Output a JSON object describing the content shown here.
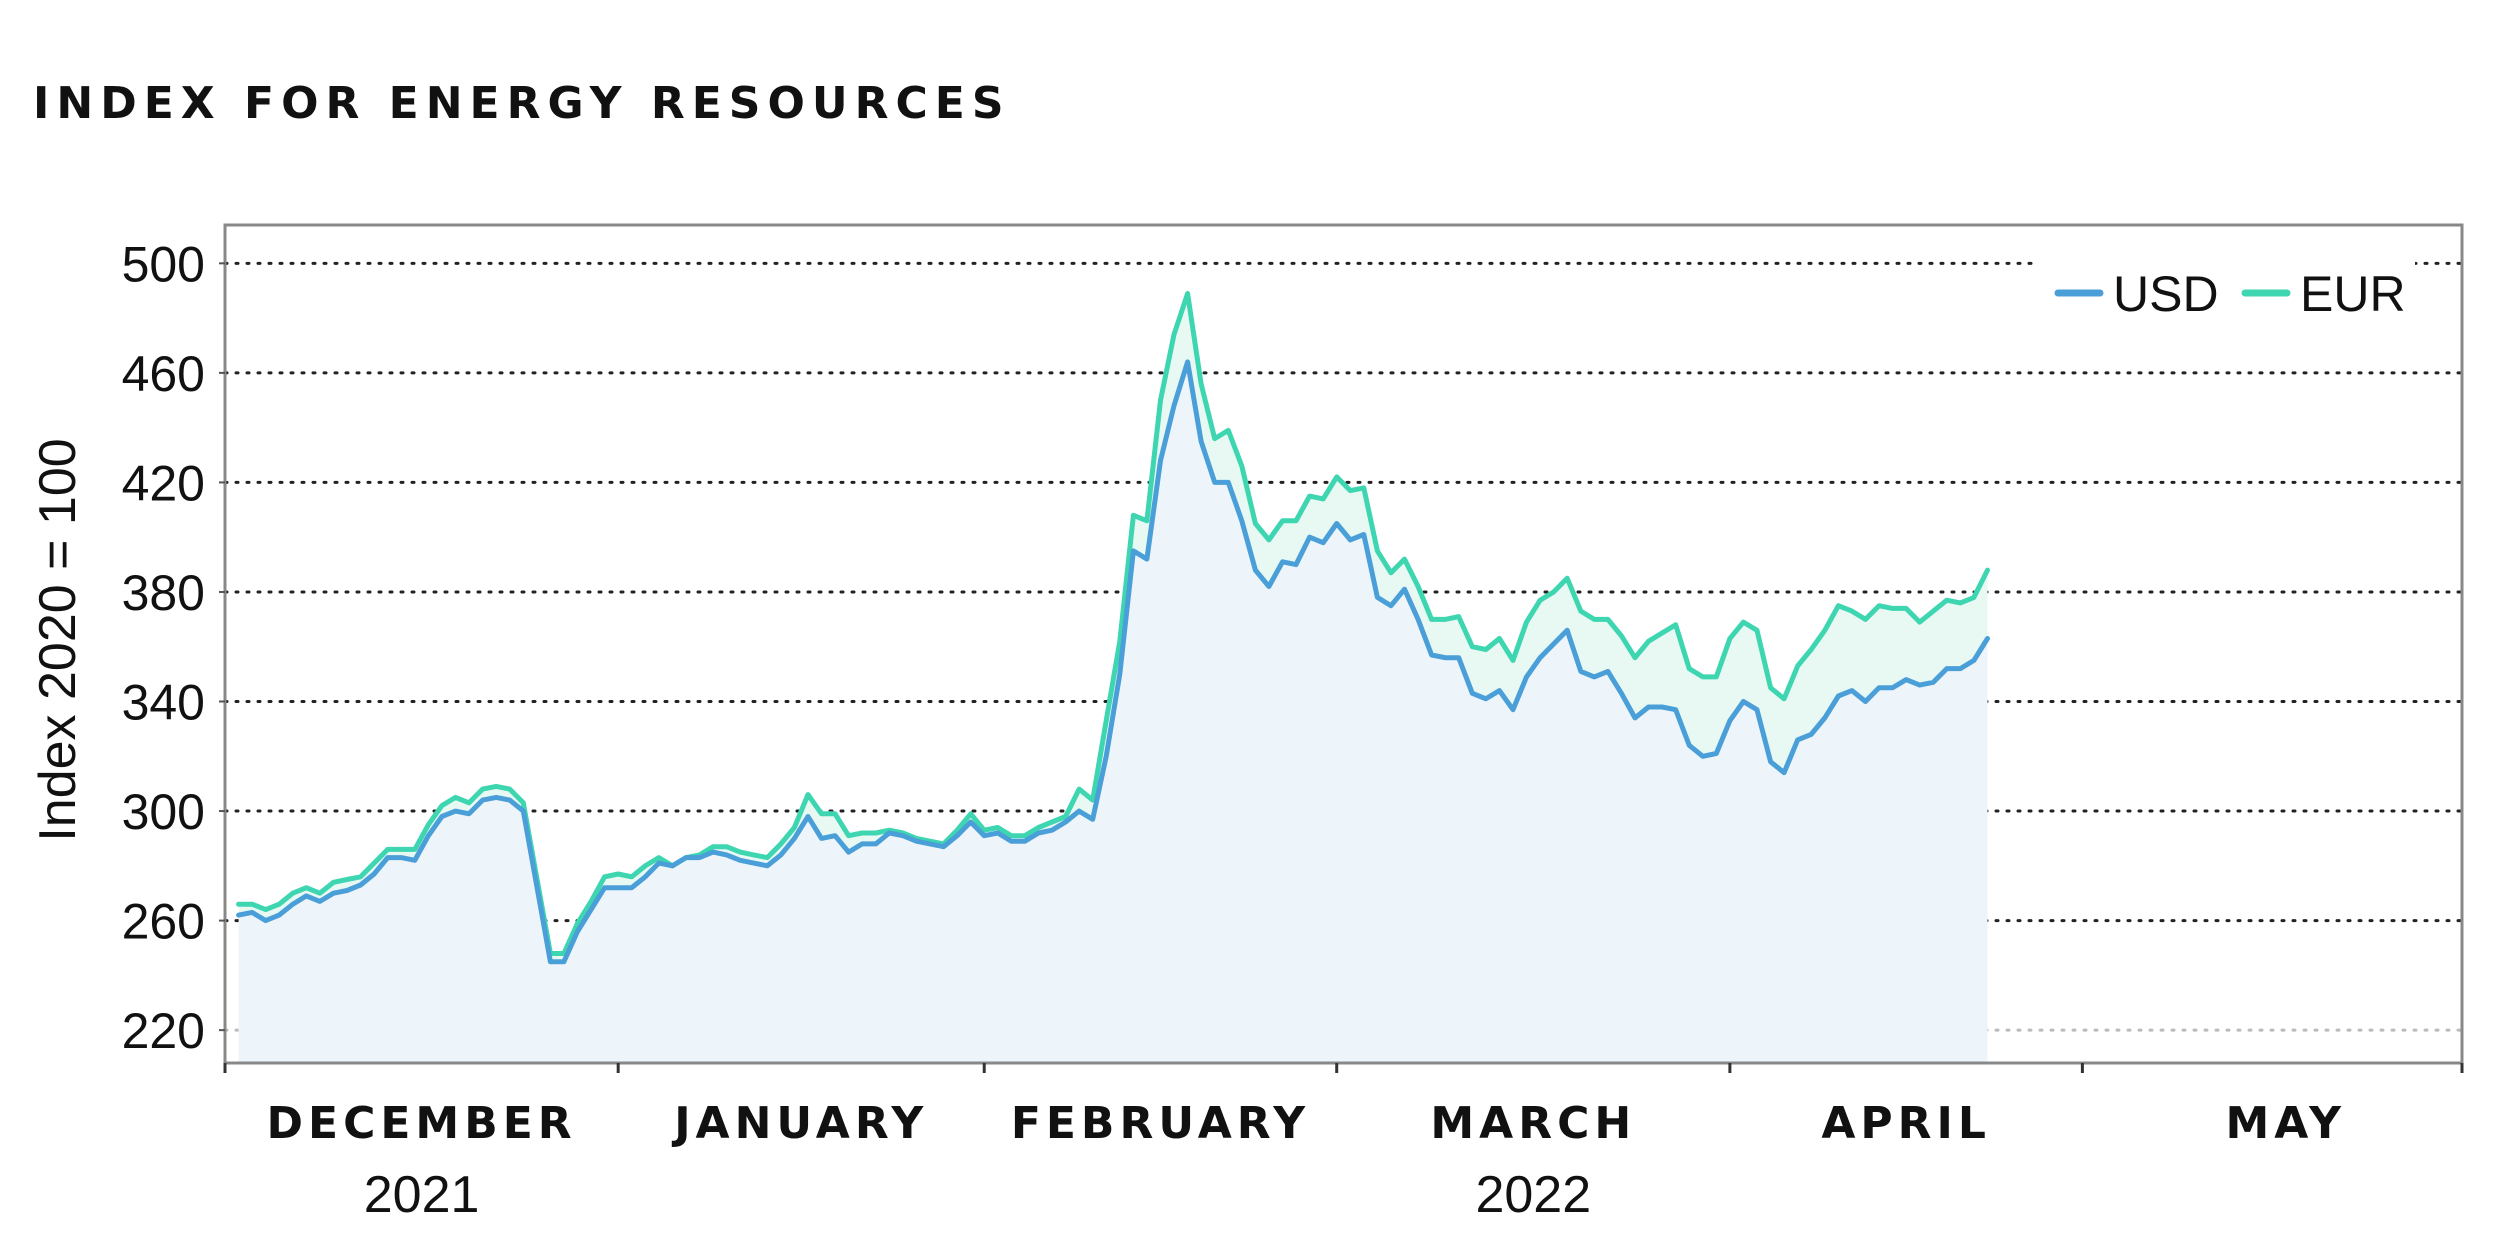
{
  "chart_data": {
    "type": "line",
    "title": "INDEX FOR ENERGY RESOURCES",
    "ylabel": "Index 2020 = 100",
    "ylim": [
      208,
      514
    ],
    "yticks": [
      220,
      260,
      300,
      340,
      380,
      420,
      460,
      500
    ],
    "grid": "horizontal-dotted",
    "legend_position": "top-right",
    "fill_under": "USD",
    "x_range": [
      0,
      165
    ],
    "month_ticks": [
      0,
      29,
      56,
      82,
      111,
      137,
      165
    ],
    "months": [
      {
        "label": "DECEMBER",
        "center": 14.5
      },
      {
        "label": "JANUARY",
        "center": 42.5
      },
      {
        "label": "FEBRUARY",
        "center": 69
      },
      {
        "label": "MARCH",
        "center": 96.5
      },
      {
        "label": "APRIL",
        "center": 124
      },
      {
        "label": "MAY",
        "center": 152
      }
    ],
    "years": [
      {
        "label": "2021",
        "center": 14.5
      },
      {
        "label": "2022",
        "center": 96.5
      }
    ],
    "colors": {
      "USD": "#4a9fd8",
      "EUR": "#3dd6b0",
      "fill": "#eef5fa",
      "grid": "#222222",
      "frame": "#888888"
    },
    "series": [
      {
        "name": "USD",
        "points": [
          [
            1,
            262
          ],
          [
            2,
            263
          ],
          [
            3,
            260
          ],
          [
            4,
            262
          ],
          [
            5,
            266
          ],
          [
            6,
            269
          ],
          [
            7,
            267
          ],
          [
            8,
            270
          ],
          [
            9,
            271
          ],
          [
            10,
            273
          ],
          [
            11,
            277
          ],
          [
            12,
            283
          ],
          [
            13,
            283
          ],
          [
            14,
            282
          ],
          [
            15,
            291
          ],
          [
            16,
            298
          ],
          [
            17,
            300
          ],
          [
            18,
            299
          ],
          [
            19,
            304
          ],
          [
            20,
            305
          ],
          [
            21,
            304
          ],
          [
            22,
            300
          ],
          [
            24,
            245
          ],
          [
            25,
            245
          ],
          [
            26,
            256
          ],
          [
            27,
            264
          ],
          [
            28,
            272
          ],
          [
            29,
            272
          ],
          [
            30,
            272
          ],
          [
            31,
            276
          ],
          [
            32,
            281
          ],
          [
            33,
            280
          ],
          [
            34,
            283
          ],
          [
            35,
            283
          ],
          [
            36,
            285
          ],
          [
            37,
            284
          ],
          [
            38,
            282
          ],
          [
            39,
            281
          ],
          [
            40,
            280
          ],
          [
            41,
            284
          ],
          [
            42,
            290
          ],
          [
            43,
            298
          ],
          [
            44,
            290
          ],
          [
            45,
            291
          ],
          [
            46,
            285
          ],
          [
            47,
            288
          ],
          [
            48,
            288
          ],
          [
            49,
            292
          ],
          [
            50,
            291
          ],
          [
            51,
            289
          ],
          [
            52,
            288
          ],
          [
            53,
            287
          ],
          [
            54,
            291
          ],
          [
            55,
            296
          ],
          [
            56,
            291
          ],
          [
            57,
            292
          ],
          [
            58,
            289
          ],
          [
            59,
            289
          ],
          [
            60,
            292
          ],
          [
            61,
            293
          ],
          [
            62,
            296
          ],
          [
            63,
            300
          ],
          [
            64,
            297
          ],
          [
            65,
            320
          ],
          [
            66,
            350
          ],
          [
            67,
            395
          ],
          [
            68,
            392
          ],
          [
            69,
            428
          ],
          [
            70,
            448
          ],
          [
            71,
            464
          ],
          [
            72,
            435
          ],
          [
            73,
            420
          ],
          [
            74,
            420
          ],
          [
            75,
            406
          ],
          [
            76,
            388
          ],
          [
            77,
            382
          ],
          [
            78,
            391
          ],
          [
            79,
            390
          ],
          [
            80,
            400
          ],
          [
            81,
            398
          ],
          [
            82,
            405
          ],
          [
            83,
            399
          ],
          [
            84,
            401
          ],
          [
            85,
            378
          ],
          [
            86,
            375
          ],
          [
            87,
            381
          ],
          [
            88,
            370
          ],
          [
            89,
            357
          ],
          [
            90,
            356
          ],
          [
            91,
            356
          ],
          [
            92,
            343
          ],
          [
            93,
            341
          ],
          [
            94,
            344
          ],
          [
            95,
            337
          ],
          [
            96,
            349
          ],
          [
            97,
            356
          ],
          [
            98,
            361
          ],
          [
            99,
            366
          ],
          [
            100,
            351
          ],
          [
            101,
            349
          ],
          [
            102,
            351
          ],
          [
            103,
            343
          ],
          [
            104,
            334
          ],
          [
            105,
            338
          ],
          [
            106,
            338
          ],
          [
            107,
            337
          ],
          [
            108,
            324
          ],
          [
            109,
            320
          ],
          [
            110,
            321
          ],
          [
            111,
            333
          ],
          [
            112,
            340
          ],
          [
            113,
            337
          ],
          [
            114,
            318
          ],
          [
            115,
            314
          ],
          [
            116,
            326
          ],
          [
            117,
            328
          ],
          [
            118,
            334
          ],
          [
            119,
            342
          ],
          [
            120,
            344
          ],
          [
            121,
            340
          ],
          [
            122,
            345
          ],
          [
            123,
            345
          ],
          [
            124,
            348
          ],
          [
            125,
            346
          ],
          [
            126,
            347
          ],
          [
            127,
            352
          ],
          [
            128,
            352
          ],
          [
            129,
            355
          ],
          [
            130,
            363
          ]
        ]
      },
      {
        "name": "EUR",
        "points": [
          [
            1,
            266
          ],
          [
            2,
            266
          ],
          [
            3,
            264
          ],
          [
            4,
            266
          ],
          [
            5,
            270
          ],
          [
            6,
            272
          ],
          [
            7,
            270
          ],
          [
            8,
            274
          ],
          [
            9,
            275
          ],
          [
            10,
            276
          ],
          [
            11,
            281
          ],
          [
            12,
            286
          ],
          [
            13,
            286
          ],
          [
            14,
            286
          ],
          [
            15,
            295
          ],
          [
            16,
            302
          ],
          [
            17,
            305
          ],
          [
            18,
            303
          ],
          [
            19,
            308
          ],
          [
            20,
            309
          ],
          [
            21,
            308
          ],
          [
            22,
            303
          ],
          [
            24,
            248
          ],
          [
            25,
            248
          ],
          [
            26,
            259
          ],
          [
            27,
            267
          ],
          [
            28,
            276
          ],
          [
            29,
            277
          ],
          [
            30,
            276
          ],
          [
            31,
            280
          ],
          [
            32,
            283
          ],
          [
            33,
            280
          ],
          [
            34,
            283
          ],
          [
            35,
            284
          ],
          [
            36,
            287
          ],
          [
            37,
            287
          ],
          [
            38,
            285
          ],
          [
            39,
            284
          ],
          [
            40,
            283
          ],
          [
            41,
            288
          ],
          [
            42,
            294
          ],
          [
            43,
            306
          ],
          [
            44,
            299
          ],
          [
            45,
            299
          ],
          [
            46,
            291
          ],
          [
            47,
            292
          ],
          [
            48,
            292
          ],
          [
            49,
            293
          ],
          [
            50,
            292
          ],
          [
            51,
            290
          ],
          [
            52,
            289
          ],
          [
            53,
            288
          ],
          [
            54,
            293
          ],
          [
            55,
            299
          ],
          [
            56,
            293
          ],
          [
            57,
            294
          ],
          [
            58,
            291
          ],
          [
            59,
            291
          ],
          [
            60,
            294
          ],
          [
            61,
            296
          ],
          [
            62,
            298
          ],
          [
            63,
            308
          ],
          [
            64,
            304
          ],
          [
            65,
            333
          ],
          [
            66,
            362
          ],
          [
            67,
            408
          ],
          [
            68,
            406
          ],
          [
            69,
            450
          ],
          [
            70,
            474
          ],
          [
            71,
            489
          ],
          [
            72,
            456
          ],
          [
            73,
            436
          ],
          [
            74,
            439
          ],
          [
            75,
            426
          ],
          [
            76,
            405
          ],
          [
            77,
            399
          ],
          [
            78,
            406
          ],
          [
            79,
            406
          ],
          [
            80,
            415
          ],
          [
            81,
            414
          ],
          [
            82,
            422
          ],
          [
            83,
            417
          ],
          [
            84,
            418
          ],
          [
            85,
            395
          ],
          [
            86,
            387
          ],
          [
            87,
            392
          ],
          [
            88,
            382
          ],
          [
            89,
            370
          ],
          [
            90,
            370
          ],
          [
            91,
            371
          ],
          [
            92,
            360
          ],
          [
            93,
            359
          ],
          [
            94,
            363
          ],
          [
            95,
            355
          ],
          [
            96,
            369
          ],
          [
            97,
            377
          ],
          [
            98,
            380
          ],
          [
            99,
            385
          ],
          [
            100,
            373
          ],
          [
            101,
            370
          ],
          [
            102,
            370
          ],
          [
            103,
            364
          ],
          [
            104,
            356
          ],
          [
            105,
            362
          ],
          [
            106,
            365
          ],
          [
            107,
            368
          ],
          [
            108,
            352
          ],
          [
            109,
            349
          ],
          [
            110,
            349
          ],
          [
            111,
            363
          ],
          [
            112,
            369
          ],
          [
            113,
            366
          ],
          [
            114,
            345
          ],
          [
            115,
            341
          ],
          [
            116,
            353
          ],
          [
            117,
            359
          ],
          [
            118,
            366
          ],
          [
            119,
            375
          ],
          [
            120,
            373
          ],
          [
            121,
            370
          ],
          [
            122,
            375
          ],
          [
            123,
            374
          ],
          [
            124,
            374
          ],
          [
            125,
            369
          ],
          [
            126,
            373
          ],
          [
            127,
            377
          ],
          [
            128,
            376
          ],
          [
            129,
            378
          ],
          [
            130,
            388
          ]
        ]
      }
    ]
  }
}
